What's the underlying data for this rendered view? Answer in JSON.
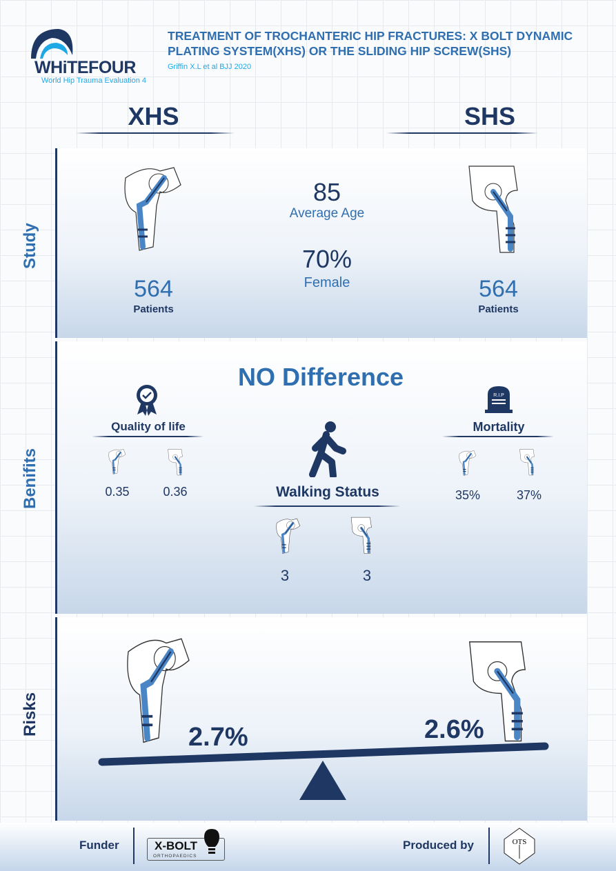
{
  "logo": {
    "text": "WHiTEFOUR",
    "subtitle": "World Hip Trauma Evaluation 4"
  },
  "header": {
    "title_line1": "TREATMENT OF TROCHANTERIC HIP FRACTURES: X BOLT DYNAMIC",
    "title_line2": "PLATING SYSTEM(XHS) OR THE SLIDING HIP SCREW(SHS)",
    "citation": "Griffin X.L et al BJJ 2020"
  },
  "columns": {
    "left": "XHS",
    "right": "SHS"
  },
  "study": {
    "label": "Study",
    "left_count": "564",
    "left_unit": "Patients",
    "right_count": "564",
    "right_unit": "Patients",
    "age": "85",
    "age_label": "Average Age",
    "female": "70%",
    "female_label": "Female"
  },
  "benefits": {
    "label": "Benifits",
    "headline": "NO Difference",
    "qol": {
      "label": "Quality of life",
      "xhs": "0.35",
      "shs": "0.36"
    },
    "mortality": {
      "label": "Mortality",
      "xhs": "35%",
      "shs": "37%",
      "icon_text": "R.I.P"
    },
    "walking": {
      "label": "Walking Status",
      "xhs": "3",
      "shs": "3"
    }
  },
  "risks": {
    "label": "Risks",
    "xhs": "2.7%",
    "shs": "2.6%"
  },
  "footer": {
    "funder_label": "Funder",
    "funder_logo": "X-BOLT",
    "funder_logo_sub": "ORTHOPAEDICS",
    "produced_label": "Produced by",
    "producer_logo": "OTS"
  },
  "colors": {
    "navy": "#1f3763",
    "blue": "#2f6fb0",
    "implant": "#4a86c5"
  }
}
